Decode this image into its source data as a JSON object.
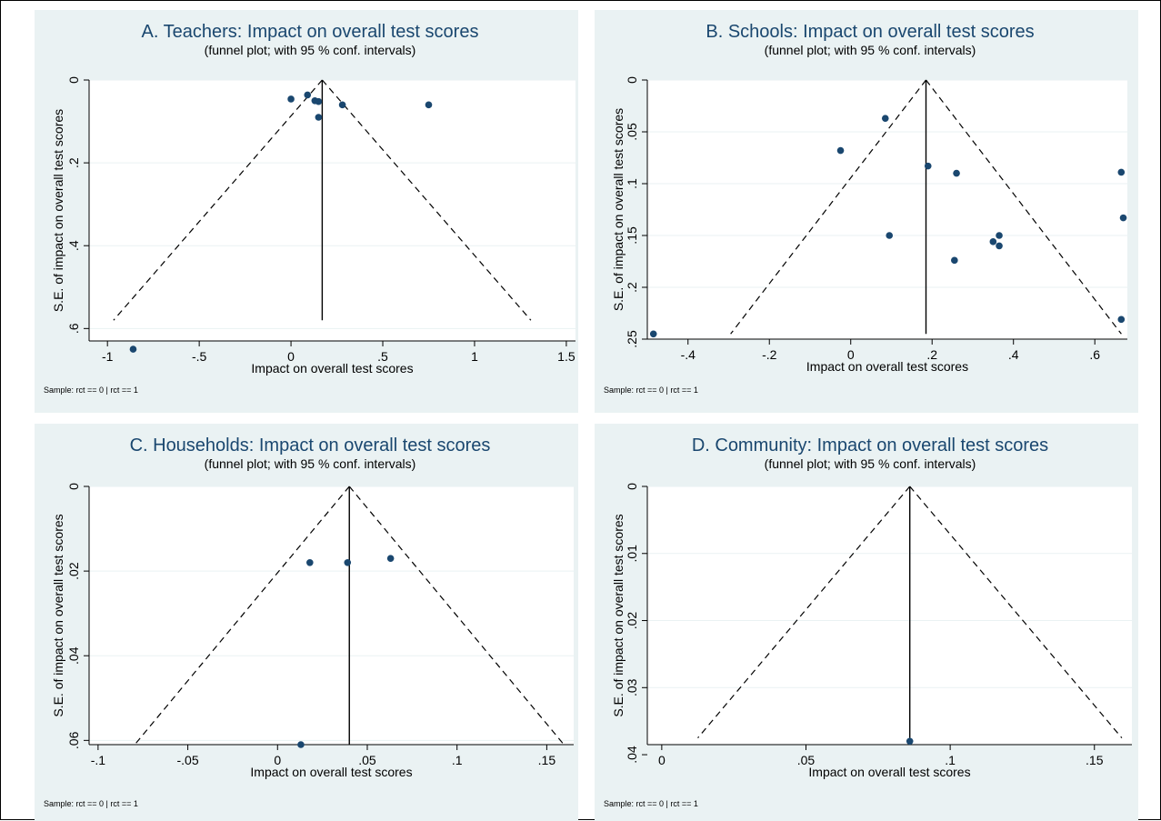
{
  "chart_data": [
    {
      "type": "scatter",
      "title": "A. Teachers: Impact on overall test scores",
      "subtitle": "(funnel plot; with 95 % conf. intervals)",
      "xlabel": "Impact on overall test scores",
      "ylabel": "S.E. of impact on overall test scores",
      "note": "Sample: rct == 0 | rct == 1",
      "xlim": [
        -1.1,
        1.55
      ],
      "ylim": [
        0,
        0.63
      ],
      "y_reversed": true,
      "xticks": [
        -1,
        -0.5,
        0,
        0.5,
        1,
        1.5
      ],
      "xtick_labels": [
        "-1",
        "-.5",
        "0",
        ".5",
        "1",
        "1.5"
      ],
      "yticks": [
        0,
        0.2,
        0.4,
        0.6
      ],
      "ytick_labels": [
        "0",
        ".2",
        ".4",
        ".6"
      ],
      "grid": true,
      "funnel_center": 0.17,
      "funnel_se_max": 0.58,
      "points": [
        [
          0.0,
          0.046
        ],
        [
          0.09,
          0.036
        ],
        [
          0.13,
          0.05
        ],
        [
          0.15,
          0.052
        ],
        [
          0.15,
          0.09
        ],
        [
          0.28,
          0.06
        ],
        [
          0.75,
          0.06
        ],
        [
          -0.86,
          0.65
        ]
      ]
    },
    {
      "type": "scatter",
      "title": "B. Schools: Impact on overall test scores",
      "subtitle": "(funnel plot; with 95 % conf. intervals)",
      "xlabel": "Impact on overall test scores",
      "ylabel": "S.E. of impact on overall test scores",
      "note": "Sample: rct == 0 | rct == 1",
      "xlim": [
        -0.5,
        0.68
      ],
      "ylim": [
        0,
        0.25
      ],
      "y_reversed": true,
      "xticks": [
        -0.4,
        -0.2,
        0,
        0.2,
        0.4,
        0.6
      ],
      "xtick_labels": [
        "-.4",
        "-.2",
        "0",
        ".2",
        ".4",
        ".6"
      ],
      "yticks": [
        0,
        0.05,
        0.1,
        0.15,
        0.2,
        0.25
      ],
      "ytick_labels": [
        "0",
        ".05",
        ".1",
        ".15",
        ".2",
        ".25"
      ],
      "grid": true,
      "funnel_center": 0.185,
      "funnel_se_max": 0.245,
      "points": [
        [
          0.085,
          0.037
        ],
        [
          -0.025,
          0.068
        ],
        [
          0.19,
          0.083
        ],
        [
          0.26,
          0.09
        ],
        [
          0.665,
          0.089
        ],
        [
          0.095,
          0.15
        ],
        [
          0.365,
          0.15
        ],
        [
          0.35,
          0.156
        ],
        [
          0.365,
          0.16
        ],
        [
          0.67,
          0.133
        ],
        [
          0.255,
          0.174
        ],
        [
          0.665,
          0.231
        ],
        [
          -0.485,
          0.245
        ]
      ]
    },
    {
      "type": "scatter",
      "title": "C. Households: Impact on overall test scores",
      "subtitle": "(funnel plot; with 95 % conf. intervals)",
      "xlabel": "Impact on overall test scores",
      "ylabel": "S.E. of impact on overall test scores",
      "note": "Sample: rct == 0 | rct == 1",
      "xlim": [
        -0.105,
        0.165
      ],
      "ylim": [
        0,
        0.061
      ],
      "y_reversed": true,
      "xticks": [
        -0.1,
        -0.05,
        0,
        0.05,
        0.1,
        0.15
      ],
      "xtick_labels": [
        "-.1",
        "-.05",
        "0",
        ".05",
        ".1",
        ".15"
      ],
      "yticks": [
        0,
        0.02,
        0.04,
        0.06
      ],
      "ytick_labels": [
        "0",
        ".02",
        ".04",
        ".06"
      ],
      "grid": true,
      "funnel_center": 0.04,
      "funnel_se_max": 0.061,
      "points": [
        [
          0.018,
          0.018
        ],
        [
          0.039,
          0.018
        ],
        [
          0.063,
          0.017
        ],
        [
          0.013,
          0.061
        ]
      ]
    },
    {
      "type": "scatter",
      "title": "D. Community: Impact on overall test scores",
      "subtitle": "(funnel plot; with 95 % conf. intervals)",
      "xlabel": "Impact on overall test scores",
      "ylabel": "S.E. of impact on overall test scores",
      "note": "Sample: rct == 0 | rct == 1",
      "xlim": [
        -0.005,
        0.163
      ],
      "ylim": [
        0,
        0.0385
      ],
      "y_reversed": true,
      "xticks": [
        0,
        0.05,
        0.1,
        0.15
      ],
      "xtick_labels": [
        "0",
        ".05",
        ".1",
        ".15"
      ],
      "yticks": [
        0,
        0.01,
        0.02,
        0.03,
        0.04
      ],
      "ytick_labels": [
        "0",
        ".01",
        ".02",
        ".03",
        ".04"
      ],
      "grid": true,
      "funnel_center": 0.086,
      "funnel_se_max": 0.0375,
      "points": [
        [
          0.086,
          0.038
        ]
      ]
    }
  ],
  "colors": {
    "panel_background": "#eaf2f3",
    "plot_background": "#ffffff",
    "title": "#1a476f",
    "marker": "#1a476f",
    "grid": "#eaf2f3"
  }
}
